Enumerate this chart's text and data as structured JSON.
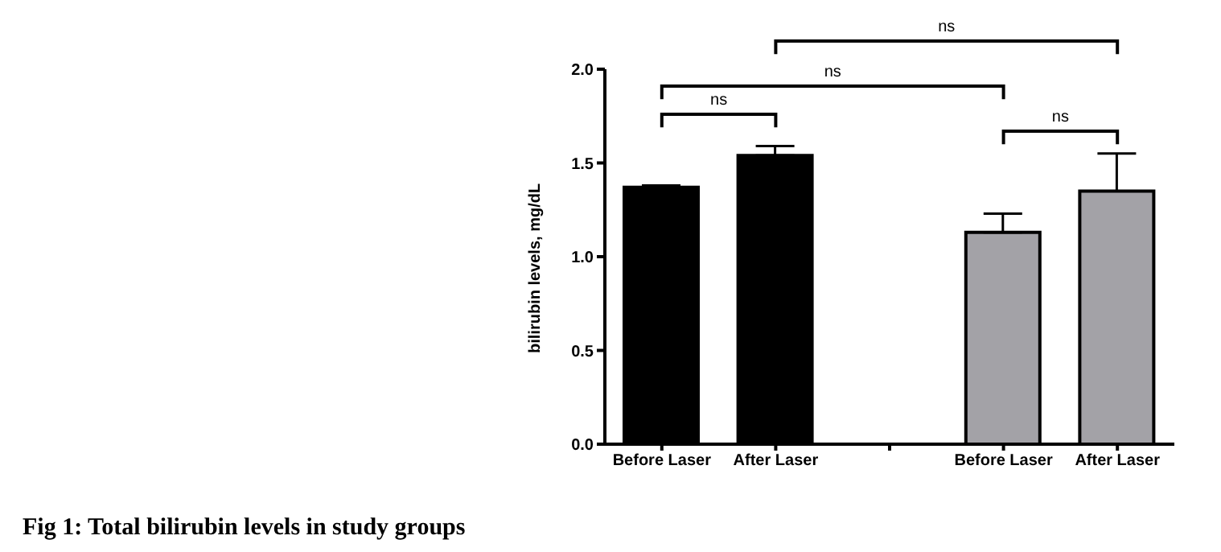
{
  "chart_data": {
    "type": "bar",
    "title": "Fig 1: Total bilirubin levels in study groups",
    "ylabel": "bilirubin levels, mg/dL",
    "categories": [
      "Before Laser",
      "After Laser",
      null,
      "Before Laser",
      "After Laser"
    ],
    "values": [
      1.37,
      1.54,
      null,
      1.13,
      1.35
    ],
    "colors": [
      "#000000",
      "#000000",
      "#a3a2a7",
      "#a3a2a7",
      "#a3a2a7"
    ],
    "errors": [
      [
        1.37,
        1.38
      ],
      [
        1.54,
        1.59
      ],
      null,
      [
        1.13,
        1.23
      ],
      [
        1.35,
        1.55
      ]
    ],
    "ylim": [
      0,
      2.0
    ],
    "yticks": [
      {
        "value": 0,
        "label": "0.0"
      },
      {
        "value": 0.5,
        "label": "0.5"
      },
      {
        "value": 1,
        "label": "1.0"
      },
      {
        "value": 1.5,
        "label": "1.5"
      },
      {
        "value": 2,
        "label": "2.0"
      }
    ],
    "annotations": [
      "ns",
      "ns",
      "ns",
      "ns"
    ],
    "grid": false,
    "legend": false
  }
}
